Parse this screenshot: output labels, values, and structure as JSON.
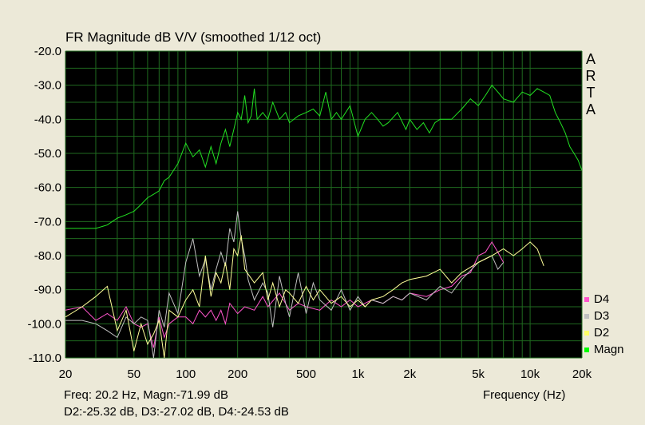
{
  "title": "FR Magnitude dB V/V (smoothed 1/12 oct)",
  "brand_letters": [
    "A",
    "R",
    "T",
    "A"
  ],
  "status": {
    "line1": "Freq: 20.2 Hz, Magn:-71.99 dB",
    "line2": "D2:-25.32 dB, D3:-27.02 dB, D4:-24.53 dB"
  },
  "colors": {
    "plot_bg": "#000000",
    "grid": "#1f6a1f",
    "D4": "#ff55cc",
    "D3": "#c0c0c0",
    "D2": "#ffff99",
    "Magn": "#22e022"
  },
  "chart_data": {
    "type": "line",
    "title": "FR Magnitude dB V/V (smoothed 1/12 oct)",
    "xlabel": "Frequency (Hz)",
    "ylabel": "",
    "x_scale": "log",
    "xlim": [
      20,
      20000
    ],
    "ylim": [
      -110,
      -20
    ],
    "grid": true,
    "legend_position": "bottom-right",
    "x_ticks": [
      20,
      50,
      100,
      200,
      500,
      1000,
      2000,
      5000,
      10000,
      20000
    ],
    "x_tick_labels": [
      "20",
      "50",
      "100",
      "200",
      "500",
      "1k",
      "2k",
      "5k",
      "10k",
      "20k"
    ],
    "y_ticks": [
      -20,
      -30,
      -40,
      -50,
      -60,
      -70,
      -80,
      -90,
      -100,
      -110
    ],
    "y_tick_labels": [
      "-20.0",
      "-30.0",
      "-40.0",
      "-50.0",
      "-60.0",
      "-70.0",
      "-80.0",
      "-90.0",
      "-100.0",
      "-110.0"
    ],
    "series": [
      {
        "name": "D4",
        "x": [
          20,
          25,
          30,
          35,
          40,
          45,
          50,
          55,
          60,
          65,
          70,
          75,
          80,
          90,
          100,
          110,
          120,
          130,
          140,
          150,
          160,
          170,
          180,
          200,
          220,
          250,
          280,
          300,
          350,
          400,
          450,
          500,
          600,
          700,
          800,
          900,
          1000,
          1200,
          1400,
          1600,
          1800,
          2000,
          2500,
          3000,
          3500,
          4000,
          4500,
          5000,
          5500,
          6000,
          6500,
          7000
        ],
        "y": [
          -96,
          -95,
          -99,
          -97,
          -99,
          -95,
          -100,
          -101,
          -100,
          -107,
          -98,
          -104,
          -100,
          -98,
          -98,
          -100,
          -96,
          -98,
          -96,
          -99,
          -96,
          -100,
          -94,
          -97,
          -95,
          -96,
          -92,
          -95,
          -91,
          -96,
          -94,
          -95,
          -96,
          -93,
          -95,
          -93,
          -95,
          -93,
          -94,
          -92,
          -93,
          -91,
          -92,
          -90,
          -89,
          -86,
          -85,
          -80,
          -79,
          -76,
          -79,
          -82
        ]
      },
      {
        "name": "D3",
        "x": [
          20,
          25,
          30,
          35,
          40,
          45,
          50,
          55,
          60,
          65,
          70,
          75,
          80,
          90,
          100,
          110,
          120,
          130,
          140,
          150,
          160,
          170,
          180,
          190,
          200,
          210,
          220,
          230,
          250,
          280,
          300,
          320,
          350,
          380,
          400,
          450,
          500,
          550,
          600,
          700,
          800,
          900,
          1000,
          1100,
          1200,
          1400,
          1600,
          1800,
          2000,
          2500,
          3000,
          3500,
          4000,
          5000,
          6000,
          6500,
          7000
        ],
        "y": [
          -99,
          -99,
          -100,
          -102,
          -104,
          -98,
          -100,
          -98,
          -99,
          -110,
          -96,
          -101,
          -91,
          -97,
          -82,
          -75,
          -86,
          -81,
          -90,
          -84,
          -79,
          -83,
          -72,
          -76,
          -67,
          -75,
          -80,
          -87,
          -93,
          -88,
          -91,
          -101,
          -86,
          -94,
          -98,
          -85,
          -97,
          -88,
          -93,
          -96,
          -90,
          -96,
          -92,
          -95,
          -93,
          -94,
          -92,
          -93,
          -91,
          -93,
          -89,
          -91,
          -87,
          -82,
          -80,
          -84,
          -82
        ]
      },
      {
        "name": "D2",
        "x": [
          20,
          25,
          30,
          35,
          40,
          45,
          50,
          55,
          60,
          65,
          70,
          75,
          80,
          90,
          100,
          110,
          120,
          130,
          140,
          150,
          160,
          170,
          180,
          190,
          200,
          210,
          220,
          250,
          280,
          300,
          320,
          350,
          380,
          400,
          450,
          500,
          550,
          600,
          700,
          800,
          900,
          1000,
          1100,
          1200,
          1400,
          1600,
          1800,
          2000,
          2500,
          3000,
          3500,
          4000,
          5000,
          6000,
          7000,
          8000,
          9000,
          10000,
          11000,
          12000
        ],
        "y": [
          -98,
          -95,
          -92,
          -89,
          -102,
          -96,
          -108,
          -100,
          -106,
          -103,
          -99,
          -110,
          -96,
          -98,
          -93,
          -90,
          -95,
          -80,
          -92,
          -85,
          -88,
          -82,
          -90,
          -78,
          -80,
          -74,
          -84,
          -88,
          -85,
          -93,
          -88,
          -95,
          -90,
          -91,
          -94,
          -89,
          -93,
          -90,
          -94,
          -92,
          -95,
          -93,
          -95,
          -93,
          -92,
          -90,
          -88,
          -87,
          -86,
          -84,
          -88,
          -85,
          -82,
          -80,
          -78,
          -80,
          -78,
          -76,
          -78,
          -83
        ]
      },
      {
        "name": "Magn",
        "x": [
          20,
          25,
          30,
          35,
          40,
          45,
          50,
          55,
          60,
          65,
          70,
          75,
          80,
          90,
          100,
          110,
          120,
          130,
          140,
          150,
          160,
          170,
          180,
          190,
          200,
          210,
          220,
          230,
          240,
          250,
          260,
          280,
          300,
          320,
          350,
          380,
          400,
          450,
          500,
          550,
          600,
          650,
          700,
          750,
          800,
          900,
          1000,
          1100,
          1200,
          1300,
          1400,
          1500,
          1700,
          1900,
          2000,
          2200,
          2400,
          2600,
          2800,
          3000,
          3500,
          4000,
          4500,
          5000,
          5500,
          6000,
          6500,
          7000,
          8000,
          9000,
          10000,
          11000,
          12000,
          13000,
          14000,
          15000,
          16000,
          17000,
          18000,
          19000,
          20000
        ],
        "y": [
          -72,
          -72,
          -72,
          -71,
          -69,
          -68,
          -67,
          -65,
          -63,
          -62,
          -61,
          -58,
          -57,
          -53,
          -47,
          -51,
          -49,
          -54,
          -48,
          -53,
          -47,
          -43,
          -48,
          -43,
          -38,
          -40,
          -33,
          -41,
          -39,
          -31,
          -40,
          -38,
          -40,
          -35,
          -40,
          -38,
          -41,
          -39,
          -38,
          -37,
          -39,
          -32,
          -40,
          -38,
          -40,
          -36,
          -45,
          -40,
          -38,
          -40,
          -42,
          -41,
          -38,
          -43,
          -40,
          -43,
          -41,
          -44,
          -41,
          -40,
          -40,
          -37,
          -34,
          -36,
          -33,
          -30,
          -32,
          -34,
          -35,
          -32,
          -33,
          -31,
          -32,
          -33,
          -38,
          -41,
          -44,
          -48,
          -50,
          -52,
          -55
        ]
      }
    ]
  }
}
